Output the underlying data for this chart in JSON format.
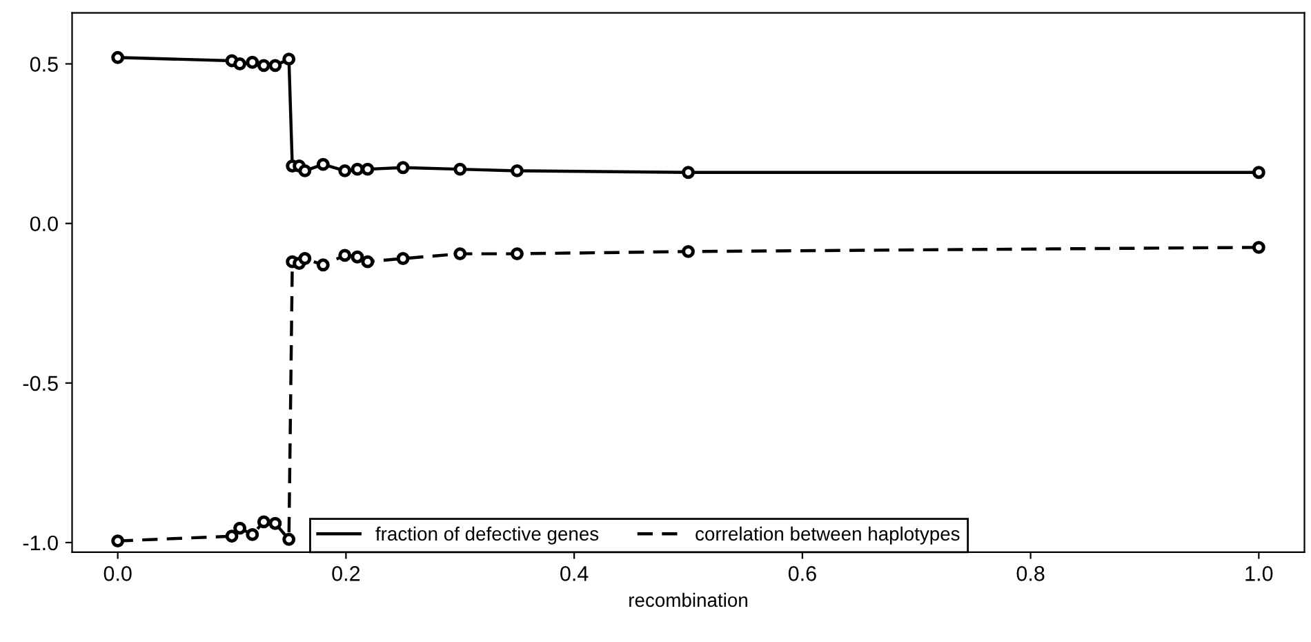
{
  "chart_data": {
    "type": "line",
    "xlabel": "recombination",
    "x": [
      0.0,
      0.1,
      0.107,
      0.118,
      0.128,
      0.138,
      0.15,
      0.153,
      0.159,
      0.164,
      0.18,
      0.199,
      0.21,
      0.219,
      0.25,
      0.3,
      0.35,
      0.5,
      1.0
    ],
    "series": [
      {
        "name": "fraction of defective genes",
        "color": "#000000",
        "line_style": "solid",
        "values": [
          0.52,
          0.51,
          0.5,
          0.505,
          0.495,
          0.495,
          0.515,
          0.18,
          0.18,
          0.165,
          0.185,
          0.165,
          0.17,
          0.17,
          0.175,
          0.17,
          0.165,
          0.16,
          0.16
        ]
      },
      {
        "name": "correlation between haplotypes",
        "color": "#000000",
        "line_style": "dashed",
        "values": [
          -0.995,
          -0.98,
          -0.955,
          -0.975,
          -0.935,
          -0.94,
          -0.99,
          -0.12,
          -0.125,
          -0.11,
          -0.13,
          -0.1,
          -0.105,
          -0.12,
          -0.11,
          -0.095,
          -0.095,
          -0.088,
          -0.075
        ]
      }
    ],
    "marker": "circle",
    "legend": "bottom",
    "grid": false,
    "xlim": [
      -0.04,
      1.04
    ],
    "ylim": [
      -1.03,
      0.66
    ],
    "xticks": [
      {
        "value": 0.0,
        "label": "0.0"
      },
      0.2,
      0.4,
      0.6,
      0.8,
      {
        "value": 1.0,
        "label": "1.0"
      }
    ],
    "yticks": [
      {
        "value": -1.0,
        "label": "-1.0"
      },
      -0.5,
      {
        "value": 0.0,
        "label": "0.0"
      },
      0.5
    ]
  }
}
